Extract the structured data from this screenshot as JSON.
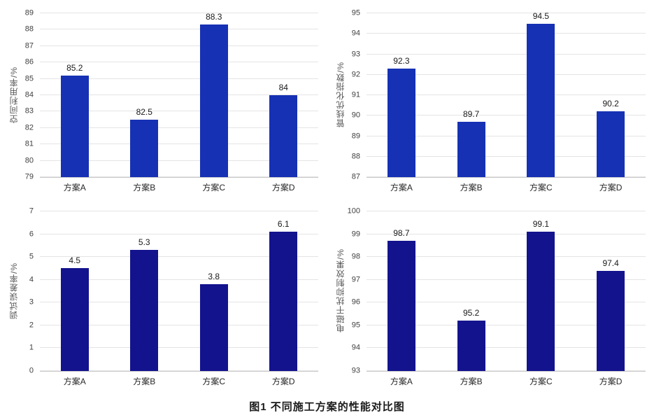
{
  "figure": {
    "caption": "图1  不同施工方案的性能对比图"
  },
  "colors": {
    "top_row_bar": "#1631b4",
    "bottom_row_bar": "#13138e",
    "gridline": "#e4e4e4",
    "axis_line": "#c9c9c9"
  },
  "chart_data": [
    {
      "type": "bar",
      "title": "",
      "xlabel": "",
      "ylabel": "空间利用率/%",
      "categories": [
        "方案A",
        "方案B",
        "方案C",
        "方案D"
      ],
      "values": [
        85.2,
        82.5,
        88.3,
        84
      ],
      "value_labels": [
        "85.2",
        "82.5",
        "88.3",
        "84"
      ],
      "ylim": [
        79,
        89
      ],
      "ytick_step": 1,
      "grid": true,
      "legend": false,
      "bar_color": "#1631b4",
      "position": "top-left"
    },
    {
      "type": "bar",
      "title": "",
      "xlabel": "",
      "ylabel": "管线优化指数/%",
      "categories": [
        "方案A",
        "方案B",
        "方案C",
        "方案D"
      ],
      "values": [
        92.3,
        89.7,
        94.5,
        90.2
      ],
      "value_labels": [
        "92.3",
        "89.7",
        "94.5",
        "90.2"
      ],
      "ylim": [
        87,
        95
      ],
      "ytick_step": 1,
      "grid": true,
      "legend": false,
      "bar_color": "#1631b4",
      "position": "top-right"
    },
    {
      "type": "bar",
      "title": "",
      "xlabel": "",
      "ylabel": "调试误差率/%",
      "categories": [
        "方案A",
        "方案B",
        "方案C",
        "方案D"
      ],
      "values": [
        4.5,
        5.3,
        3.8,
        6.1
      ],
      "value_labels": [
        "4.5",
        "5.3",
        "3.8",
        "6.1"
      ],
      "ylim": [
        0,
        7
      ],
      "ytick_step": 1,
      "grid": true,
      "legend": false,
      "bar_color": "#13138e",
      "position": "bottom-left"
    },
    {
      "type": "bar",
      "title": "",
      "xlabel": "",
      "ylabel": "电磁干扰抑制效果/%",
      "categories": [
        "方案A",
        "方案B",
        "方案C",
        "方案D"
      ],
      "values": [
        98.7,
        95.2,
        99.1,
        97.4
      ],
      "value_labels": [
        "98.7",
        "95.2",
        "99.1",
        "97.4"
      ],
      "ylim": [
        93,
        100
      ],
      "ytick_step": 1,
      "grid": true,
      "legend": false,
      "bar_color": "#13138e",
      "position": "bottom-right"
    }
  ]
}
